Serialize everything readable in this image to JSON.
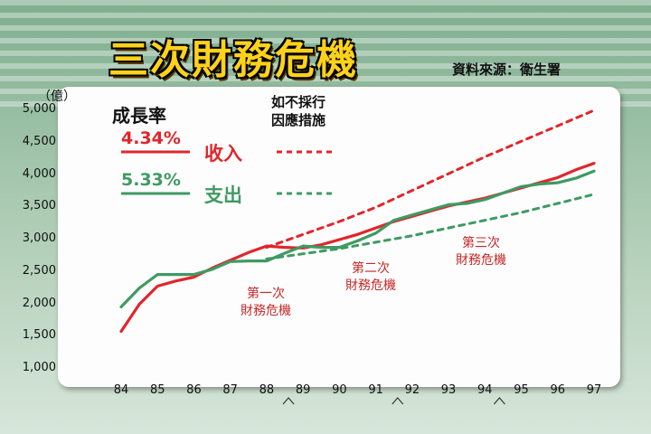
{
  "headline": "三次財務危機",
  "source": "資料來源：衛生署",
  "unit_label": "（億）",
  "colors": {
    "income": "#e0262b",
    "expense": "#3f9a63",
    "crisis_text": "#c62828",
    "headline": "#ffd21a"
  },
  "legend": {
    "growth_rate_title": "成長率",
    "projection_title_line1": "如不採行",
    "projection_title_line2": "因應措施",
    "income_rate": "4.34%",
    "expense_rate": "5.33%",
    "income_label": "收入",
    "expense_label": "支出"
  },
  "crisis_labels": [
    {
      "line1": "第一次",
      "line2": "財務危機"
    },
    {
      "line1": "第二次",
      "line2": "財務危機"
    },
    {
      "line1": "第三次",
      "line2": "財務危機"
    }
  ],
  "chart_data": {
    "type": "line",
    "ylim": [
      1000,
      5000
    ],
    "xlim": [
      84,
      97
    ],
    "y_ticks": [
      "1,000",
      "1,500",
      "2,000",
      "2,500",
      "3,000",
      "3,500",
      "4,000",
      "4,500",
      "5,000"
    ],
    "x_ticks": [
      "84",
      "85",
      "86",
      "87",
      "88",
      "89",
      "90",
      "91",
      "92",
      "93",
      "94",
      "95",
      "96",
      "97"
    ],
    "crisis_markers_x": [
      88.6,
      91.6,
      94.4
    ],
    "series": [
      {
        "name": "收入",
        "style": "solid",
        "color": "#e0262b",
        "x": [
          84,
          84.5,
          85,
          85.5,
          86,
          86.5,
          87,
          87.5,
          88,
          88.5,
          89,
          89.5,
          90,
          90.5,
          91,
          91.5,
          92,
          92.5,
          93,
          93.5,
          94,
          94.5,
          95,
          95.5,
          96,
          96.5,
          97
        ],
        "values": [
          1580,
          2000,
          2280,
          2360,
          2420,
          2560,
          2680,
          2800,
          2900,
          2880,
          2870,
          2920,
          3000,
          3080,
          3180,
          3280,
          3360,
          3440,
          3520,
          3580,
          3640,
          3720,
          3800,
          3880,
          3960,
          4080,
          4180
        ]
      },
      {
        "name": "支出",
        "style": "solid",
        "color": "#3f9a63",
        "x": [
          84,
          84.5,
          85,
          85.5,
          86,
          86.5,
          87,
          87.5,
          88,
          88.5,
          89,
          89.5,
          90,
          90.5,
          91,
          91.5,
          92,
          92.5,
          93,
          93.5,
          94,
          94.5,
          95,
          95.5,
          96,
          96.5,
          97
        ],
        "values": [
          1960,
          2250,
          2460,
          2460,
          2460,
          2540,
          2660,
          2670,
          2670,
          2790,
          2900,
          2880,
          2880,
          2980,
          3100,
          3300,
          3380,
          3460,
          3540,
          3560,
          3620,
          3720,
          3820,
          3860,
          3880,
          3950,
          4060
        ]
      },
      {
        "name": "收入（如不採行因應措施）",
        "style": "dashed",
        "color": "#e0262b",
        "x": [
          88,
          89,
          90,
          91,
          92,
          93,
          94,
          95,
          96,
          97
        ],
        "values": [
          2880,
          3080,
          3280,
          3500,
          3760,
          4020,
          4280,
          4520,
          4760,
          5000
        ]
      },
      {
        "name": "支出（如不採行因應措施）",
        "style": "dashed",
        "color": "#3f9a63",
        "x": [
          88,
          89,
          90,
          91,
          92,
          93,
          94,
          95,
          96,
          97
        ],
        "values": [
          2700,
          2780,
          2860,
          2960,
          3060,
          3180,
          3300,
          3420,
          3560,
          3700
        ]
      }
    ]
  }
}
